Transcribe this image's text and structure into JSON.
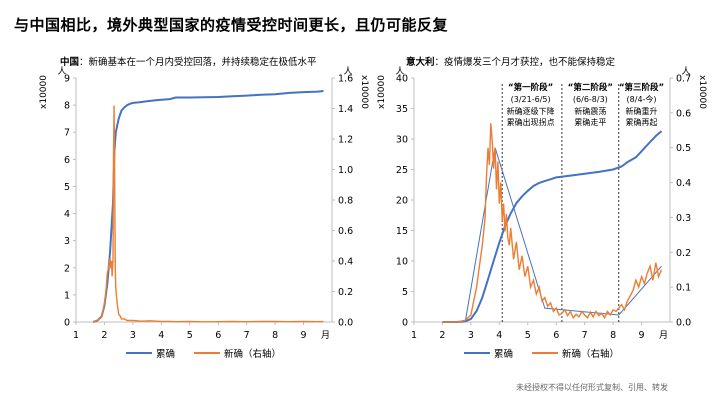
{
  "page": {
    "title": "与中国相比，境外典型国家的疫情受控时间更长，且仍可能反复",
    "footer": "未经授权不得以任何形式复制、引用、转发"
  },
  "colors": {
    "cumulative": "#4472C4",
    "new": "#ED7D31",
    "axis": "#bfbfbf"
  },
  "chart_data": [
    {
      "id": "china",
      "type": "line",
      "subtitle_bold": "中国",
      "subtitle_rest": "：新确基本在一个月内受控回落，并持续稳定在极低水平",
      "y_unit_top": "人",
      "y_unit_side": "x10000",
      "y2_unit_top": "人",
      "y2_unit_side": "x10000",
      "x_unit": "月",
      "xlim": [
        1,
        10
      ],
      "x_ticks": [
        1,
        2,
        3,
        4,
        5,
        6,
        7,
        8,
        9
      ],
      "ylim": [
        0,
        9
      ],
      "y_ticks": [
        0,
        1,
        2,
        3,
        4,
        5,
        6,
        7,
        8,
        9
      ],
      "y2lim": [
        0,
        1.6
      ],
      "y2_ticks": [
        "0.0",
        "0.2",
        "0.4",
        "0.6",
        "0.8",
        "1.0",
        "1.2",
        "1.4",
        "1.6"
      ],
      "legend": [
        "累确",
        "新确（右轴）"
      ],
      "series": [
        {
          "name": "累确",
          "axis": "left",
          "x": [
            1.6,
            1.75,
            1.9,
            2.0,
            2.1,
            2.2,
            2.3,
            2.35,
            2.4,
            2.5,
            2.6,
            2.7,
            2.8,
            2.9,
            3.0,
            3.2,
            3.5,
            3.8,
            4.0,
            4.3,
            4.5,
            5.0,
            5.5,
            6.0,
            6.5,
            7.0,
            7.5,
            8.0,
            8.5,
            9.0,
            9.5,
            9.7
          ],
          "y": [
            0,
            0.05,
            0.2,
            0.6,
            1.4,
            2.6,
            4.4,
            6.3,
            7.0,
            7.5,
            7.8,
            7.92,
            8.0,
            8.05,
            8.08,
            8.1,
            8.14,
            8.18,
            8.2,
            8.22,
            8.28,
            8.28,
            8.29,
            8.3,
            8.33,
            8.35,
            8.38,
            8.4,
            8.45,
            8.48,
            8.5,
            8.52
          ]
        },
        {
          "name": "新确（右轴）",
          "axis": "right",
          "x": [
            1.6,
            1.75,
            1.9,
            2.0,
            2.05,
            2.1,
            2.15,
            2.2,
            2.23,
            2.25,
            2.27,
            2.3,
            2.32,
            2.34,
            2.36,
            2.38,
            2.4,
            2.45,
            2.5,
            2.55,
            2.6,
            2.7,
            2.8,
            3.0,
            3.3,
            3.6,
            4.0,
            4.3,
            4.5,
            5.0,
            5.5,
            6.0,
            6.5,
            7.0,
            7.5,
            8.0,
            8.5,
            9.0,
            9.5,
            9.7
          ],
          "y": [
            0,
            0.01,
            0.03,
            0.12,
            0.2,
            0.32,
            0.36,
            0.42,
            0.35,
            0.4,
            0.3,
            0.4,
            1.1,
            1.42,
            0.9,
            0.35,
            0.22,
            0.12,
            0.05,
            0.04,
            0.02,
            0.02,
            0.01,
            0.01,
            0.005,
            0.008,
            0.004,
            0.003,
            0.002,
            0.003,
            0.001,
            0.002,
            0.003,
            0.002,
            0.003,
            0.004,
            0.002,
            0.003,
            0.002,
            0.003
          ]
        }
      ]
    },
    {
      "id": "italy",
      "type": "line",
      "subtitle_bold": "意大利",
      "subtitle_rest": "：疫情爆发三个月才获控，也不能保持稳定",
      "y_unit_top": "人",
      "y_unit_side": "x10000",
      "y2_unit_top": "人",
      "y2_unit_side": "x10000",
      "x_unit": "月",
      "xlim": [
        1,
        10
      ],
      "x_ticks": [
        1,
        2,
        3,
        4,
        5,
        6,
        7,
        8,
        9
      ],
      "ylim": [
        0,
        40
      ],
      "y_ticks": [
        0,
        5,
        10,
        15,
        20,
        25,
        30,
        35,
        40
      ],
      "y2lim": [
        0,
        0.7
      ],
      "y2_ticks": [
        "0.0",
        "0.1",
        "0.2",
        "0.3",
        "0.4",
        "0.5",
        "0.6",
        "0.7"
      ],
      "legend": [
        "累确",
        "新确（右轴）"
      ],
      "phase_lines_x": [
        4.1,
        6.2,
        8.2
      ],
      "phases": [
        {
          "label": "“第一阶段”",
          "range": "(3/21-6/5)",
          "desc1": "新确逐级下降",
          "desc2": "累确出现拐点"
        },
        {
          "label": "“第二阶段”",
          "range": "(6/6-8/3)",
          "desc1": "新确震荡",
          "desc2": "累确走平"
        },
        {
          "label": "“第三阶段”",
          "range": "(8/4-今)",
          "desc1": "新确重升",
          "desc2": "累确再起"
        }
      ],
      "series": [
        {
          "name": "累确",
          "axis": "left",
          "x": [
            2.0,
            2.5,
            2.8,
            3.0,
            3.2,
            3.4,
            3.6,
            3.8,
            4.0,
            4.2,
            4.4,
            4.6,
            4.8,
            5.0,
            5.2,
            5.4,
            5.6,
            5.8,
            6.0,
            6.5,
            7.0,
            7.5,
            8.0,
            8.3,
            8.5,
            8.8,
            9.0,
            9.3,
            9.5,
            9.7
          ],
          "y": [
            0,
            0,
            0.1,
            0.5,
            1.8,
            4.0,
            7.0,
            10.0,
            13.0,
            15.7,
            17.8,
            19.5,
            20.6,
            21.5,
            22.3,
            22.8,
            23.1,
            23.4,
            23.7,
            24.0,
            24.3,
            24.6,
            25.0,
            25.5,
            26.2,
            27.0,
            28.0,
            29.5,
            30.5,
            31.3
          ]
        },
        {
          "name": "新确（右轴）",
          "axis": "right",
          "x": [
            2.0,
            2.5,
            2.8,
            3.0,
            3.1,
            3.2,
            3.3,
            3.4,
            3.5,
            3.55,
            3.6,
            3.65,
            3.7,
            3.75,
            3.8,
            3.85,
            3.9,
            3.95,
            4.0,
            4.05,
            4.1,
            4.15,
            4.2,
            4.25,
            4.3,
            4.35,
            4.4,
            4.5,
            4.6,
            4.7,
            4.8,
            4.9,
            5.0,
            5.1,
            5.2,
            5.3,
            5.4,
            5.5,
            5.6,
            5.7,
            5.8,
            5.9,
            6.0,
            6.1,
            6.2,
            6.3,
            6.4,
            6.5,
            6.6,
            6.7,
            6.8,
            6.9,
            7.0,
            7.1,
            7.2,
            7.3,
            7.4,
            7.5,
            7.6,
            7.7,
            7.8,
            7.9,
            8.0,
            8.1,
            8.2,
            8.3,
            8.4,
            8.5,
            8.6,
            8.7,
            8.8,
            8.9,
            9.0,
            9.1,
            9.2,
            9.3,
            9.4,
            9.5,
            9.6,
            9.7
          ],
          "y": [
            0,
            0,
            0.005,
            0.02,
            0.06,
            0.1,
            0.16,
            0.22,
            0.3,
            0.42,
            0.5,
            0.45,
            0.57,
            0.52,
            0.44,
            0.5,
            0.38,
            0.46,
            0.34,
            0.4,
            0.29,
            0.34,
            0.26,
            0.31,
            0.24,
            0.22,
            0.27,
            0.18,
            0.23,
            0.15,
            0.19,
            0.13,
            0.16,
            0.1,
            0.12,
            0.08,
            0.1,
            0.06,
            0.07,
            0.045,
            0.055,
            0.03,
            0.04,
            0.02,
            0.025,
            0.035,
            0.018,
            0.03,
            0.012,
            0.022,
            0.015,
            0.03,
            0.02,
            0.012,
            0.028,
            0.015,
            0.03,
            0.018,
            0.025,
            0.012,
            0.03,
            0.02,
            0.035,
            0.03,
            0.04,
            0.05,
            0.035,
            0.06,
            0.075,
            0.09,
            0.12,
            0.1,
            0.13,
            0.11,
            0.14,
            0.16,
            0.12,
            0.17,
            0.13,
            0.15
          ]
        }
      ]
    }
  ]
}
